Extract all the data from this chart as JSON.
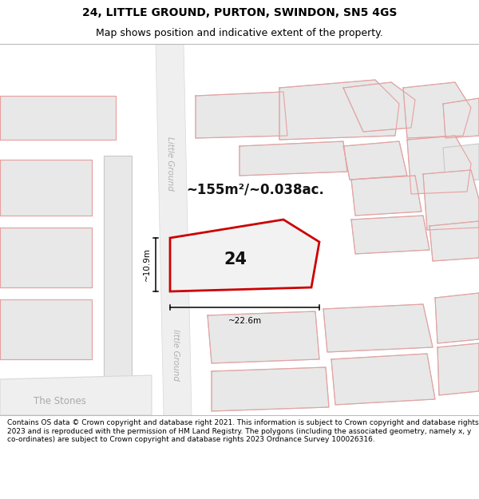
{
  "title": "24, LITTLE GROUND, PURTON, SWINDON, SN5 4GS",
  "subtitle": "Map shows position and indicative extent of the property.",
  "footer": "Contains OS data © Crown copyright and database right 2021. This information is subject to Crown copyright and database rights 2023 and is reproduced with the permission of HM Land Registry. The polygons (including the associated geometry, namely x, y co-ordinates) are subject to Crown copyright and database rights 2023 Ordnance Survey 100026316.",
  "bg_color": "#ffffff",
  "area_text": "~155m²/~0.038ac.",
  "label_24": "24",
  "dim_height": "~10.9m",
  "dim_width": "~22.6m",
  "road_label_1": "Little Ground",
  "road_label_2": "little Ground",
  "place_label": "The Stones",
  "title_fontsize": 10,
  "subtitle_fontsize": 9,
  "footer_fontsize": 6.5,
  "building_fill": "#e8e8e8",
  "building_stroke": "#c8c8c8",
  "red_stroke": "#e8a0a0",
  "highlight_fill": "#f2f2f2",
  "highlight_stroke": "#cc0000",
  "road_fill": "#efefef",
  "map_bg": "#f7f7f7"
}
